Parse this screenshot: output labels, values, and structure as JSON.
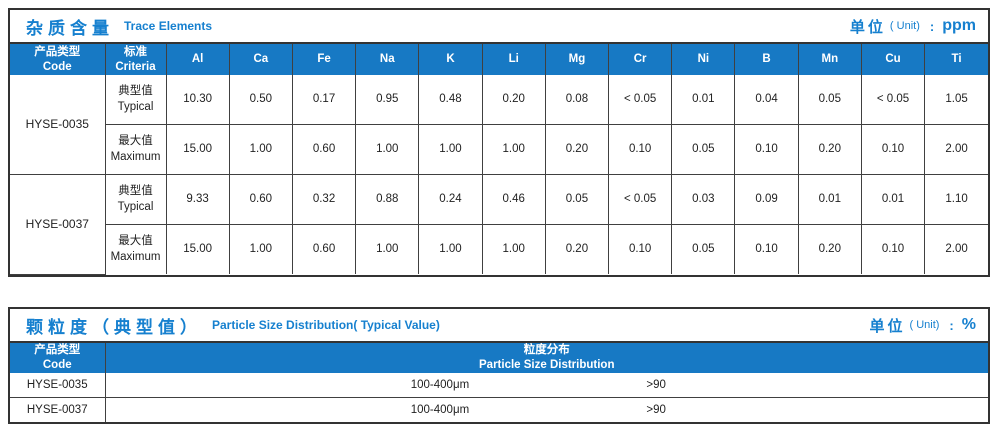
{
  "colors": {
    "header_blue": "#1779c4",
    "accent_blue": "#1680cf",
    "border_dark": "#333333",
    "body_text": "#222222"
  },
  "trace_table": {
    "title_zh": "杂质含量",
    "title_en": "Trace Elements",
    "unit_label_zh": "单位",
    "unit_label_en": "( Unit)",
    "unit_sep": ":",
    "unit_value": "ppm",
    "col_code_zh": "产品类型",
    "col_code_en": "Code",
    "col_criteria_zh": "标准",
    "col_criteria_en": "Criteria",
    "elements": [
      "Al",
      "Ca",
      "Fe",
      "Na",
      "K",
      "Li",
      "Mg",
      "Cr",
      "Ni",
      "B",
      "Mn",
      "Cu",
      "Ti"
    ],
    "groups": [
      {
        "code": "HYSE-0035",
        "rows": [
          {
            "criteria_zh": "典型值",
            "criteria_en": "Typical",
            "values": [
              "10.30",
              "0.50",
              "0.17",
              "0.95",
              "0.48",
              "0.20",
              "0.08",
              "< 0.05",
              "0.01",
              "0.04",
              "0.05",
              "< 0.05",
              "1.05"
            ]
          },
          {
            "criteria_zh": "最大值",
            "criteria_en": "Maximum",
            "values": [
              "15.00",
              "1.00",
              "0.60",
              "1.00",
              "1.00",
              "1.00",
              "0.20",
              "0.10",
              "0.05",
              "0.10",
              "0.20",
              "0.10",
              "2.00"
            ]
          }
        ]
      },
      {
        "code": "HYSE-0037",
        "rows": [
          {
            "criteria_zh": "典型值",
            "criteria_en": "Typical",
            "values": [
              "9.33",
              "0.60",
              "0.32",
              "0.88",
              "0.24",
              "0.46",
              "0.05",
              "< 0.05",
              "0.03",
              "0.09",
              "0.01",
              "0.01",
              "1.10"
            ]
          },
          {
            "criteria_zh": "最大值",
            "criteria_en": "Maximum",
            "values": [
              "15.00",
              "1.00",
              "0.60",
              "1.00",
              "1.00",
              "1.00",
              "0.20",
              "0.10",
              "0.05",
              "0.10",
              "0.20",
              "0.10",
              "2.00"
            ]
          }
        ]
      }
    ]
  },
  "particle_table": {
    "title_zh": "颗粒度（典型值）",
    "title_en": "Particle Size Distribution( Typical Value)",
    "unit_label_zh": "单位",
    "unit_label_en": "( Unit)",
    "unit_sep": ":",
    "unit_value": "%",
    "col_code_zh": "产品类型",
    "col_code_en": "Code",
    "col_dist_zh": "粒度分布",
    "col_dist_en": "Particle Size  Distribution",
    "rows": [
      {
        "code": "HYSE-0035",
        "range": "100-400μm",
        "value": ">90"
      },
      {
        "code": "HYSE-0037",
        "range": "100-400μm",
        "value": ">90"
      }
    ]
  }
}
